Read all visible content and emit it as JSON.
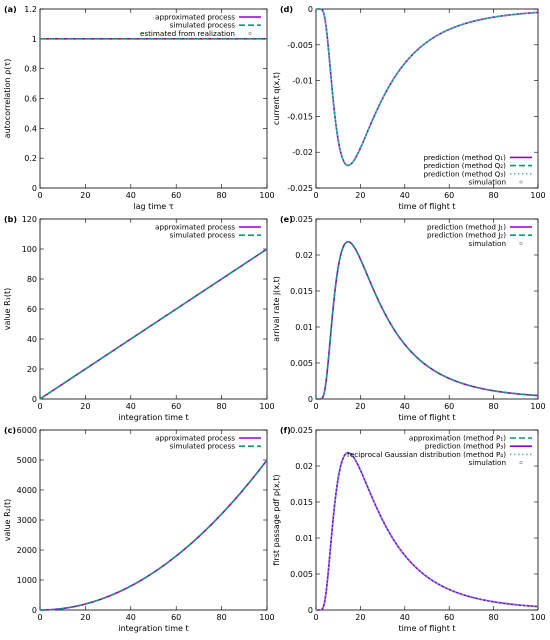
{
  "colors": {
    "magenta": "#9400d3",
    "green": "#009e73",
    "cyan": "#56b4e9",
    "simulation": "#888888"
  },
  "chart_data": [
    {
      "id": "a",
      "panel_label": "(a)",
      "type": "line",
      "xlabel": "lag time τ",
      "ylabel": "autocorrelation ρ(τ)",
      "xlim": [
        0,
        100
      ],
      "ylim": [
        0,
        1.2
      ],
      "xticks": [
        "0",
        "20",
        "40",
        "60",
        "80",
        "100"
      ],
      "yticks": [
        "0",
        "0.2",
        "0.4",
        "0.6",
        "0.8",
        "1",
        "1.2"
      ],
      "legend_position": "top-right",
      "curve": "constant_one",
      "series": [
        {
          "name": "approximated process",
          "color": "#9400d3",
          "style": "solid"
        },
        {
          "name": "simulated process",
          "color": "#009e73",
          "style": "dashed"
        },
        {
          "name": "estimated from realization",
          "color": "#888888",
          "style": "points"
        }
      ]
    },
    {
      "id": "b",
      "panel_label": "(b)",
      "type": "line",
      "xlabel": "integration time t",
      "ylabel": "value R₁(t)",
      "xlim": [
        0,
        100
      ],
      "ylim": [
        0,
        120
      ],
      "xticks": [
        "0",
        "20",
        "40",
        "60",
        "80",
        "100"
      ],
      "yticks": [
        "0",
        "20",
        "40",
        "60",
        "80",
        "100",
        "120"
      ],
      "legend_position": "top-right",
      "curve": "linear",
      "x": [
        0,
        20,
        40,
        60,
        80,
        100
      ],
      "y": [
        0,
        20,
        40,
        60,
        80,
        100
      ],
      "series": [
        {
          "name": "approximated process",
          "color": "#9400d3",
          "style": "solid"
        },
        {
          "name": "simulated process",
          "color": "#009e73",
          "style": "dashed"
        }
      ]
    },
    {
      "id": "c",
      "panel_label": "(c)",
      "type": "line",
      "xlabel": "integration time t",
      "ylabel": "value R₂(t)",
      "xlim": [
        0,
        100
      ],
      "ylim": [
        0,
        6000
      ],
      "xticks": [
        "0",
        "20",
        "40",
        "60",
        "80",
        "100"
      ],
      "yticks": [
        "0",
        "1000",
        "2000",
        "3000",
        "4000",
        "5000",
        "6000"
      ],
      "legend_position": "top-right",
      "curve": "quadratic",
      "x": [
        0,
        20,
        40,
        60,
        80,
        100
      ],
      "y": [
        0,
        200,
        800,
        1800,
        3200,
        5000
      ],
      "series": [
        {
          "name": "approximated process",
          "color": "#9400d3",
          "style": "solid"
        },
        {
          "name": "simulated process",
          "color": "#009e73",
          "style": "dashed"
        }
      ]
    },
    {
      "id": "d",
      "panel_label": "(d)",
      "type": "line",
      "xlabel": "time of flight t",
      "ylabel": "current q(x,t)",
      "xlim": [
        0,
        100
      ],
      "ylim": [
        -0.025,
        0
      ],
      "xticks": [
        "0",
        "20",
        "40",
        "60",
        "80",
        "100"
      ],
      "yticks": [
        "0",
        "-0.005",
        "-0.01",
        "-0.015",
        "-0.02",
        "-0.025"
      ],
      "legend_position": "bottom-right",
      "curve": "negative_pdf",
      "peak": {
        "x": 18.5,
        "y": -0.0204
      },
      "series": [
        {
          "name": "prediction (method Q₁)",
          "color": "#9400d3",
          "style": "solid"
        },
        {
          "name": "prediction (method Q₂)",
          "color": "#009e73",
          "style": "dashed"
        },
        {
          "name": "prediction (method Q₃)",
          "color": "#56b4e9",
          "style": "dotted"
        },
        {
          "name": "simulation",
          "color": "#888888",
          "style": "points"
        }
      ]
    },
    {
      "id": "e",
      "panel_label": "(e)",
      "type": "line",
      "xlabel": "time of flight t",
      "ylabel": "arrival rate j(x,t)",
      "xlim": [
        0,
        100
      ],
      "ylim": [
        0,
        0.025
      ],
      "xticks": [
        "0",
        "20",
        "40",
        "60",
        "80",
        "100"
      ],
      "yticks": [
        "0",
        "0.005",
        "0.01",
        "0.015",
        "0.02",
        "0.025"
      ],
      "legend_position": "top-right",
      "curve": "pdf",
      "peak": {
        "x": 18.5,
        "y": 0.0204
      },
      "series": [
        {
          "name": "prediction (method J₁)",
          "color": "#9400d3",
          "style": "solid"
        },
        {
          "name": "prediction (method J₂)",
          "color": "#009e73",
          "style": "dashed"
        },
        {
          "name": "simulation",
          "color": "#888888",
          "style": "points"
        }
      ]
    },
    {
      "id": "f",
      "panel_label": "(f)",
      "type": "line",
      "xlabel": "time of flight t",
      "ylabel": "first passage pdf p(x,t)",
      "xlim": [
        0,
        100
      ],
      "ylim": [
        0,
        0.025
      ],
      "xticks": [
        "0",
        "20",
        "40",
        "60",
        "80",
        "100"
      ],
      "yticks": [
        "0",
        "0.005",
        "0.01",
        "0.015",
        "0.02",
        "0.025"
      ],
      "legend_position": "top-right",
      "curve": "pdf",
      "peak": {
        "x": 18.5,
        "y": 0.0204
      },
      "series": [
        {
          "name": "approximation (method P₁)",
          "color": "#009e73",
          "style": "dashed"
        },
        {
          "name": "prediction (method P₃)",
          "color": "#9400d3",
          "style": "solid"
        },
        {
          "name": "reciprocal Gaussian distribution (method P₄)",
          "color": "#56b4e9",
          "style": "dotted"
        },
        {
          "name": "simulation",
          "color": "#888888",
          "style": "points"
        }
      ]
    }
  ]
}
